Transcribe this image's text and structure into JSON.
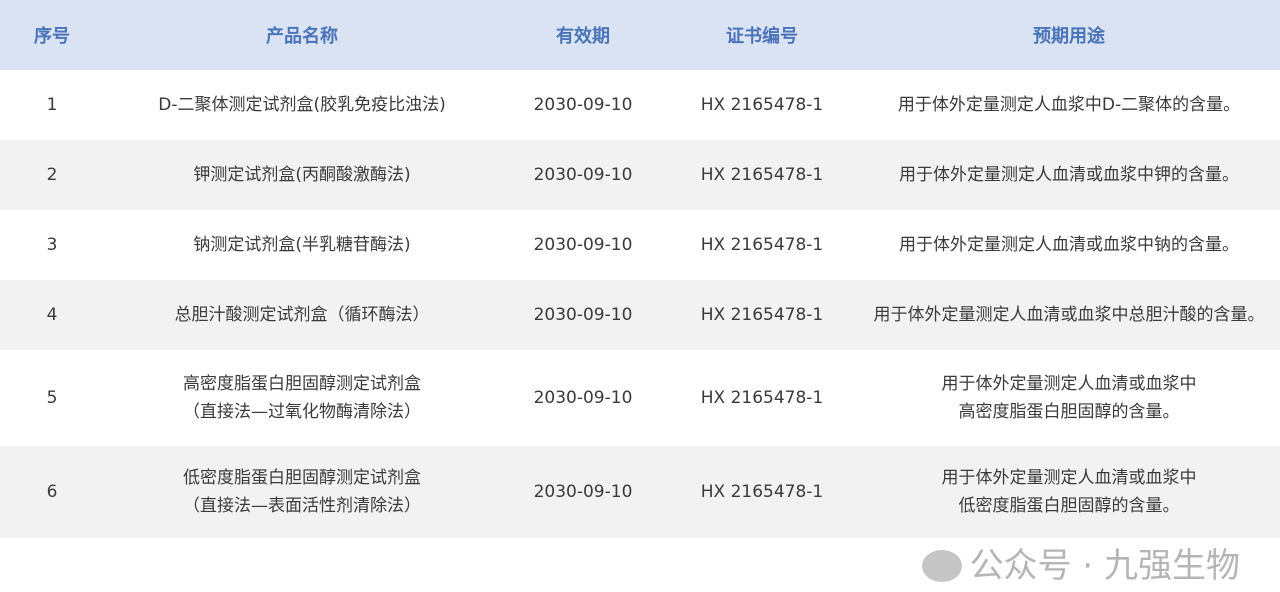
{
  "headers": [
    "序号",
    "产品名称",
    "有效期",
    "证书编号",
    "预期用途"
  ],
  "rows": [
    {
      "no": "1",
      "name": [
        "D-二聚体测定试剂盒(胶乳免疫比浊法)"
      ],
      "expiry": "2030-09-10",
      "cert": "HX 2165478-1",
      "use": [
        "用于体外定量测定人血浆中D-二聚体的含量。"
      ]
    },
    {
      "no": "2",
      "name": [
        "钾测定试剂盒(丙酮酸激酶法)"
      ],
      "expiry": "2030-09-10",
      "cert": "HX 2165478-1",
      "use": [
        "用于体外定量测定人血清或血浆中钾的含量。"
      ]
    },
    {
      "no": "3",
      "name": [
        "钠测定试剂盒(半乳糖苷酶法)"
      ],
      "expiry": "2030-09-10",
      "cert": "HX 2165478-1",
      "use": [
        "用于体外定量测定人血清或血浆中钠的含量。"
      ]
    },
    {
      "no": "4",
      "name": [
        "总胆汁酸测定试剂盒（循环酶法）"
      ],
      "expiry": "2030-09-10",
      "cert": "HX 2165478-1",
      "use": [
        "用于体外定量测定人血清或血浆中总胆汁酸的含量。"
      ]
    },
    {
      "no": "5",
      "name": [
        "高密度脂蛋白胆固醇测定试剂盒",
        "（直接法—过氧化物酶清除法）"
      ],
      "expiry": "2030-09-10",
      "cert": "HX 2165478-1",
      "use": [
        "用于体外定量测定人血清或血浆中",
        "高密度脂蛋白胆固醇的含量。"
      ]
    },
    {
      "no": "6",
      "name": [
        "低密度脂蛋白胆固醇测定试剂盒",
        "（直接法—表面活性剂清除法）"
      ],
      "expiry": "2030-09-10",
      "cert": "HX 2165478-1",
      "use": [
        "用于体外定量测定人血清或血浆中",
        "低密度脂蛋白胆固醇的含量。"
      ]
    }
  ],
  "watermark": {
    "text": "公众号 · 九强生物",
    "icon": "wechat-icon"
  }
}
